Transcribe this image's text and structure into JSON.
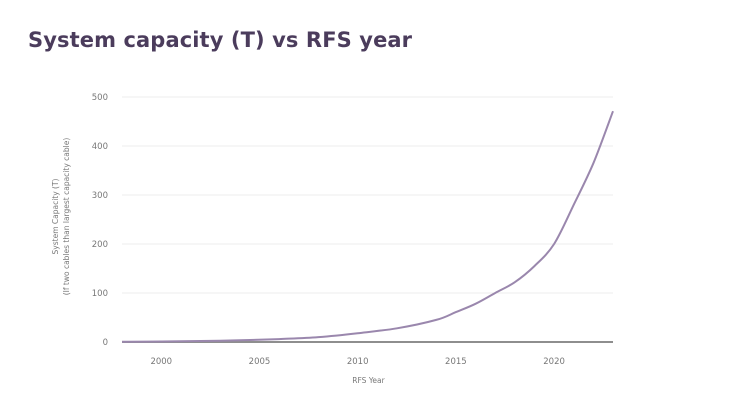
{
  "chart_data": {
    "type": "line",
    "title": "System capacity (T) vs RFS year",
    "xlabel": "RFS Year",
    "ylabel": "System Capacity (T)",
    "ylabel_sub": "(If two cables than largest capacity cable)",
    "xlim": [
      1998,
      2023
    ],
    "ylim": [
      0,
      500
    ],
    "xticks": [
      2000,
      2005,
      2010,
      2015,
      2020
    ],
    "yticks": [
      0,
      100,
      200,
      300,
      400,
      500
    ],
    "grid": true,
    "legend": "none",
    "series": [
      {
        "name": "System capacity",
        "color": "#9a87ad",
        "x": [
          1998,
          2000,
          2002,
          2004,
          2006,
          2008,
          2010,
          2012,
          2014,
          2015,
          2016,
          2017,
          2018,
          2019,
          2020,
          2021,
          2022,
          2023
        ],
        "values": [
          0.5,
          1,
          2,
          3.5,
          6,
          10,
          18,
          28,
          45,
          61,
          78,
          100,
          122,
          155,
          200,
          280,
          365,
          471
        ]
      }
    ]
  }
}
